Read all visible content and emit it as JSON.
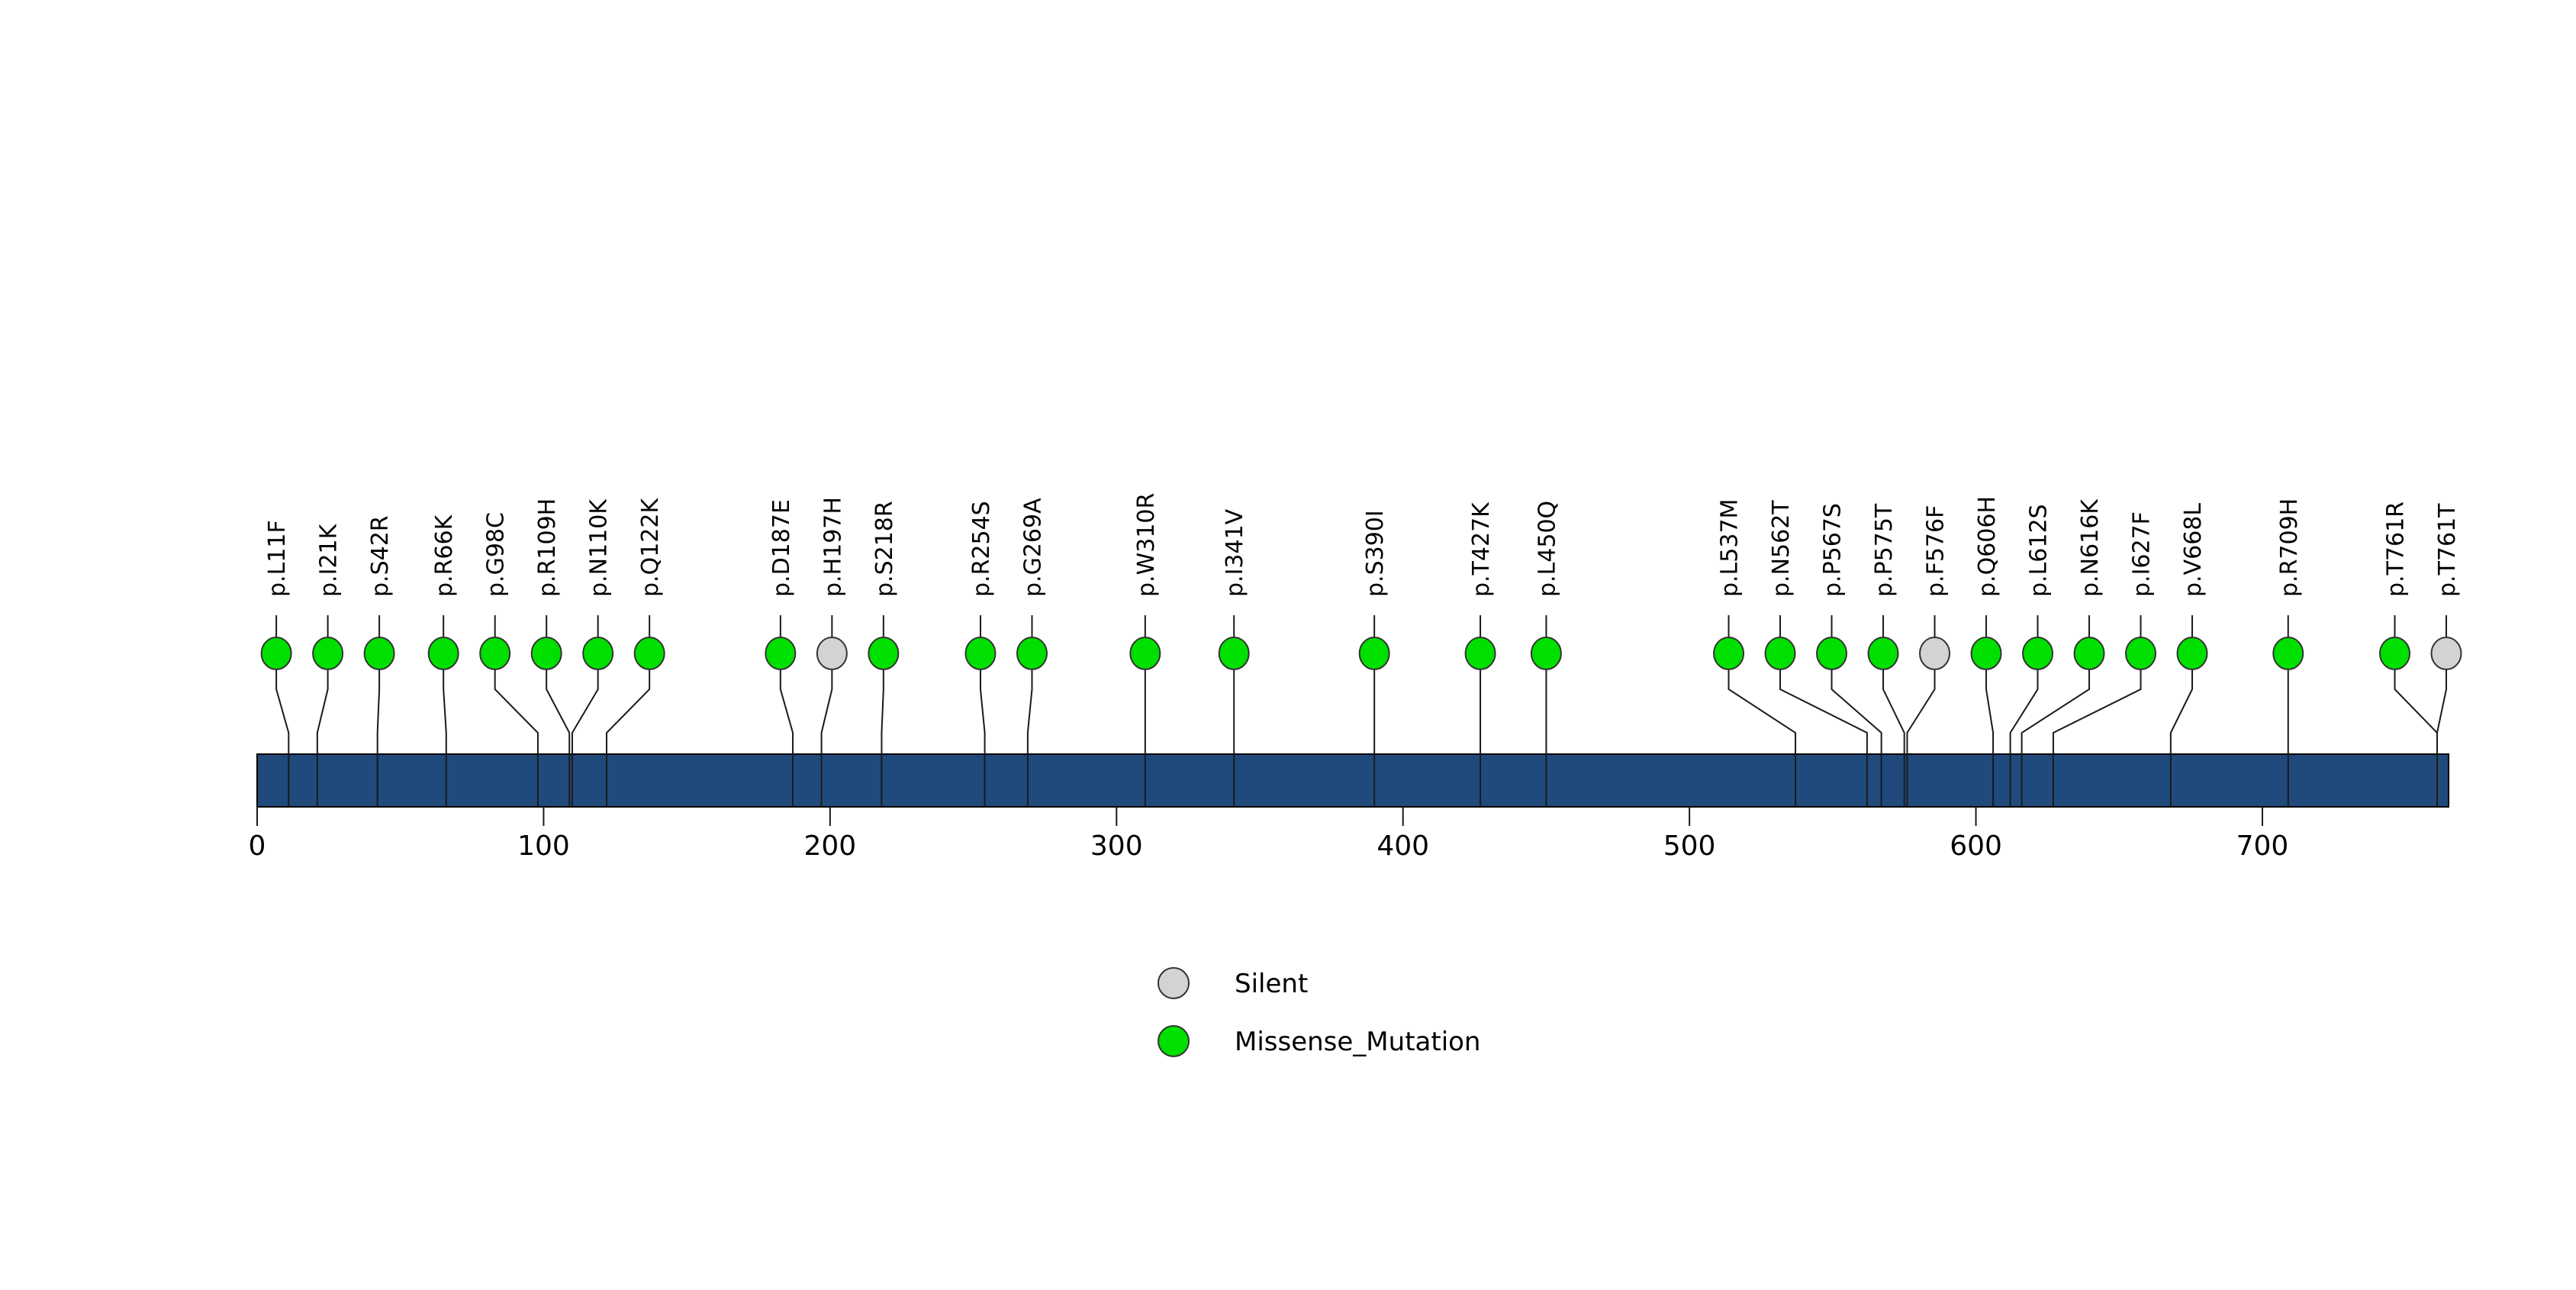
{
  "figure": {
    "background": "#ffffff",
    "title": ""
  },
  "chart_data": {
    "type": "lollipop",
    "title": "",
    "xlabel": "",
    "ylabel": "",
    "grid": false,
    "legend_position": "bottom-center",
    "axis": {
      "min": 0,
      "max": 765,
      "ticks": [
        0,
        100,
        200,
        300,
        400,
        500,
        600,
        700
      ]
    },
    "protein_bar": {
      "start": 0,
      "end": 765,
      "color": "#204A7C",
      "border_color": "#000000"
    },
    "marker_colors": {
      "Silent": "#D3D3D3",
      "Missense_Mutation": "#00E000"
    },
    "legend": [
      {
        "label": "Silent",
        "color": "#D3D3D3"
      },
      {
        "label": "Missense_Mutation",
        "color": "#00E000"
      }
    ],
    "mutations": [
      {
        "label": "p.L11F",
        "position": 11,
        "class": "Missense_Mutation"
      },
      {
        "label": "p.I21K",
        "position": 21,
        "class": "Missense_Mutation"
      },
      {
        "label": "p.S42R",
        "position": 42,
        "class": "Missense_Mutation"
      },
      {
        "label": "p.R66K",
        "position": 66,
        "class": "Missense_Mutation"
      },
      {
        "label": "p.G98C",
        "position": 98,
        "class": "Missense_Mutation"
      },
      {
        "label": "p.R109H",
        "position": 109,
        "class": "Missense_Mutation"
      },
      {
        "label": "p.N110K",
        "position": 110,
        "class": "Missense_Mutation"
      },
      {
        "label": "p.Q122K",
        "position": 122,
        "class": "Missense_Mutation"
      },
      {
        "label": "p.D187E",
        "position": 187,
        "class": "Missense_Mutation"
      },
      {
        "label": "p.H197H",
        "position": 197,
        "class": "Silent"
      },
      {
        "label": "p.S218R",
        "position": 218,
        "class": "Missense_Mutation"
      },
      {
        "label": "p.R254S",
        "position": 254,
        "class": "Missense_Mutation"
      },
      {
        "label": "p.G269A",
        "position": 269,
        "class": "Missense_Mutation"
      },
      {
        "label": "p.W310R",
        "position": 310,
        "class": "Missense_Mutation"
      },
      {
        "label": "p.I341V",
        "position": 341,
        "class": "Missense_Mutation"
      },
      {
        "label": "p.S390I",
        "position": 390,
        "class": "Missense_Mutation"
      },
      {
        "label": "p.T427K",
        "position": 427,
        "class": "Missense_Mutation"
      },
      {
        "label": "p.L450Q",
        "position": 450,
        "class": "Missense_Mutation"
      },
      {
        "label": "p.L537M",
        "position": 537,
        "class": "Missense_Mutation"
      },
      {
        "label": "p.N562T",
        "position": 562,
        "class": "Missense_Mutation"
      },
      {
        "label": "p.P567S",
        "position": 567,
        "class": "Missense_Mutation"
      },
      {
        "label": "p.P575T",
        "position": 575,
        "class": "Missense_Mutation"
      },
      {
        "label": "p.F576F",
        "position": 576,
        "class": "Silent"
      },
      {
        "label": "p.Q606H",
        "position": 606,
        "class": "Missense_Mutation"
      },
      {
        "label": "p.L612S",
        "position": 612,
        "class": "Missense_Mutation"
      },
      {
        "label": "p.N616K",
        "position": 616,
        "class": "Missense_Mutation"
      },
      {
        "label": "p.I627F",
        "position": 627,
        "class": "Missense_Mutation"
      },
      {
        "label": "p.V668L",
        "position": 668,
        "class": "Missense_Mutation"
      },
      {
        "label": "p.R709H",
        "position": 709,
        "class": "Missense_Mutation"
      },
      {
        "label": "p.T761R",
        "position": 761,
        "class": "Missense_Mutation"
      },
      {
        "label": "p.T761T",
        "position": 761,
        "class": "Silent"
      }
    ]
  }
}
